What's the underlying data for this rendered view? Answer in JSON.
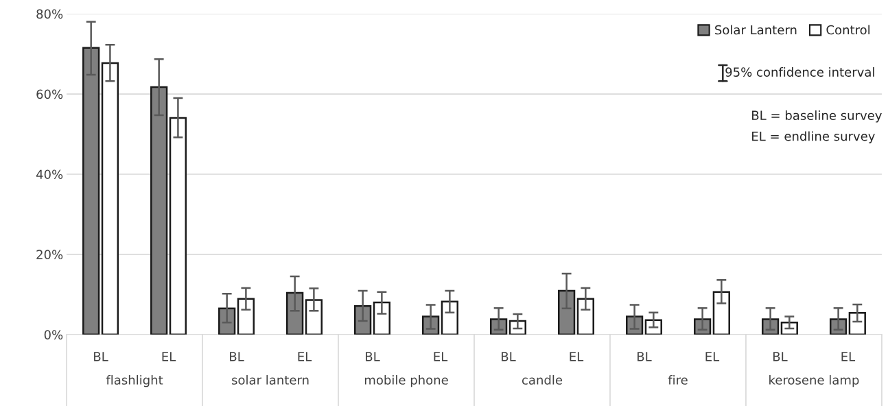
{
  "chart_data": {
    "type": "bar",
    "categories": [
      "BL",
      "EL",
      "BL",
      "EL",
      "BL",
      "EL",
      "BL",
      "EL",
      "BL",
      "EL",
      "BL",
      "EL"
    ],
    "series": [
      {
        "name": "Solar Lantern",
        "color": "#808080",
        "values": [
          71.5,
          61.7,
          6.5,
          10.4,
          7.1,
          4.5,
          3.8,
          10.9,
          4.5,
          3.8,
          3.8,
          3.8
        ],
        "errors": [
          [
            64.8,
            78.0
          ],
          [
            54.7,
            68.7
          ],
          [
            3.0,
            10.2
          ],
          [
            5.9,
            14.5
          ],
          [
            3.4,
            10.9
          ],
          [
            1.4,
            7.4
          ],
          [
            1.2,
            6.6
          ],
          [
            6.5,
            15.2
          ],
          [
            1.4,
            7.4
          ],
          [
            1.2,
            6.6
          ],
          [
            1.2,
            6.6
          ],
          [
            1.2,
            6.6
          ]
        ]
      },
      {
        "name": "Control",
        "color": "#ffffff",
        "values": [
          67.7,
          54.0,
          8.9,
          8.6,
          8.0,
          8.2,
          3.4,
          8.9,
          3.6,
          10.6,
          3.0,
          5.4
        ],
        "errors": [
          [
            63.2,
            72.3
          ],
          [
            49.2,
            59.0
          ],
          [
            6.2,
            11.6
          ],
          [
            5.9,
            11.5
          ],
          [
            5.2,
            10.6
          ],
          [
            5.5,
            10.9
          ],
          [
            1.5,
            5.1
          ],
          [
            6.2,
            11.6
          ],
          [
            1.8,
            5.5
          ],
          [
            7.8,
            13.6
          ],
          [
            1.5,
            4.5
          ],
          [
            3.2,
            7.5
          ]
        ]
      }
    ],
    "ylim": [
      0,
      80
    ],
    "yticks": [
      {
        "value": 0,
        "label": "0%"
      },
      {
        "value": 20,
        "label": "20%"
      },
      {
        "value": 40,
        "label": "40%"
      },
      {
        "value": 60,
        "label": "60%"
      },
      {
        "value": 80,
        "label": "80%"
      }
    ],
    "grid": "y",
    "legend": "top right",
    "annotations": [
      "flashlight",
      "solar lantern",
      "mobile phone",
      "candle",
      "fire",
      "kerosene lamp",
      "95% confidence interval",
      "BL = baseline survey",
      "EL = endline survey"
    ]
  }
}
